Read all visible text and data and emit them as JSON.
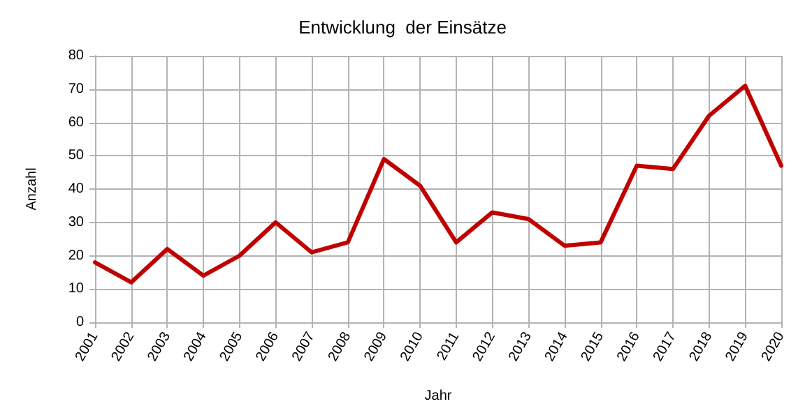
{
  "chart_data": {
    "type": "line",
    "title": "Entwicklung  der Einsätze",
    "xlabel": "Jahr",
    "ylabel": "Anzahl",
    "categories": [
      "2001",
      "2002",
      "2003",
      "2004",
      "2005",
      "2006",
      "2007",
      "2008",
      "2009",
      "2010",
      "2011",
      "2012",
      "2013",
      "2014",
      "2015",
      "2016",
      "2017",
      "2018",
      "2019",
      "2020"
    ],
    "series": [
      {
        "color": "#c00000",
        "values": [
          18,
          12,
          22,
          14,
          20,
          30,
          21,
          24,
          49,
          41,
          24,
          33,
          31,
          23,
          24,
          47,
          46,
          62,
          71,
          47
        ]
      }
    ],
    "ylim": [
      0,
      80
    ],
    "yticks": [
      0,
      10,
      20,
      30,
      40,
      50,
      60,
      70,
      80
    ],
    "grid": true,
    "marker": "none",
    "line_style": "solid"
  }
}
